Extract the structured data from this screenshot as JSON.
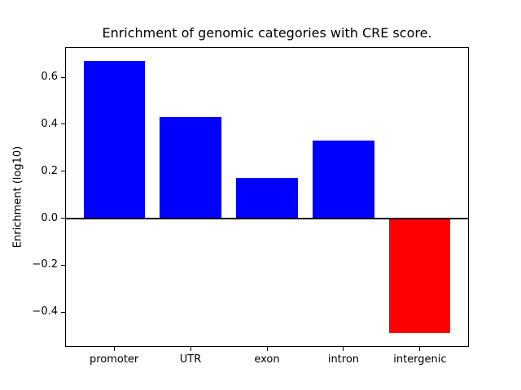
{
  "chart_data": {
    "type": "bar",
    "title": "Enrichment of genomic categories with CRE score.",
    "xlabel": "",
    "ylabel": "Enrichment (log10)",
    "categories": [
      "promoter",
      "UTR",
      "exon",
      "intron",
      "intergenic"
    ],
    "values": [
      0.67,
      0.43,
      0.17,
      0.33,
      -0.49
    ],
    "bar_colors": [
      "#0000ff",
      "#0000ff",
      "#0000ff",
      "#0000ff",
      "#ff0000"
    ],
    "bar_width": 0.8,
    "yticks": [
      0.6,
      0.4,
      0.2,
      0.0,
      -0.2,
      -0.4
    ],
    "ytick_labels": [
      "0.6",
      "0.4",
      "0.2",
      "0.0",
      "−0.2",
      "−0.4"
    ],
    "ylim": [
      -0.548,
      0.728
    ],
    "xlim": [
      -0.64,
      4.64
    ],
    "zero_line_color": "#000000",
    "grid": false,
    "legend": null
  }
}
